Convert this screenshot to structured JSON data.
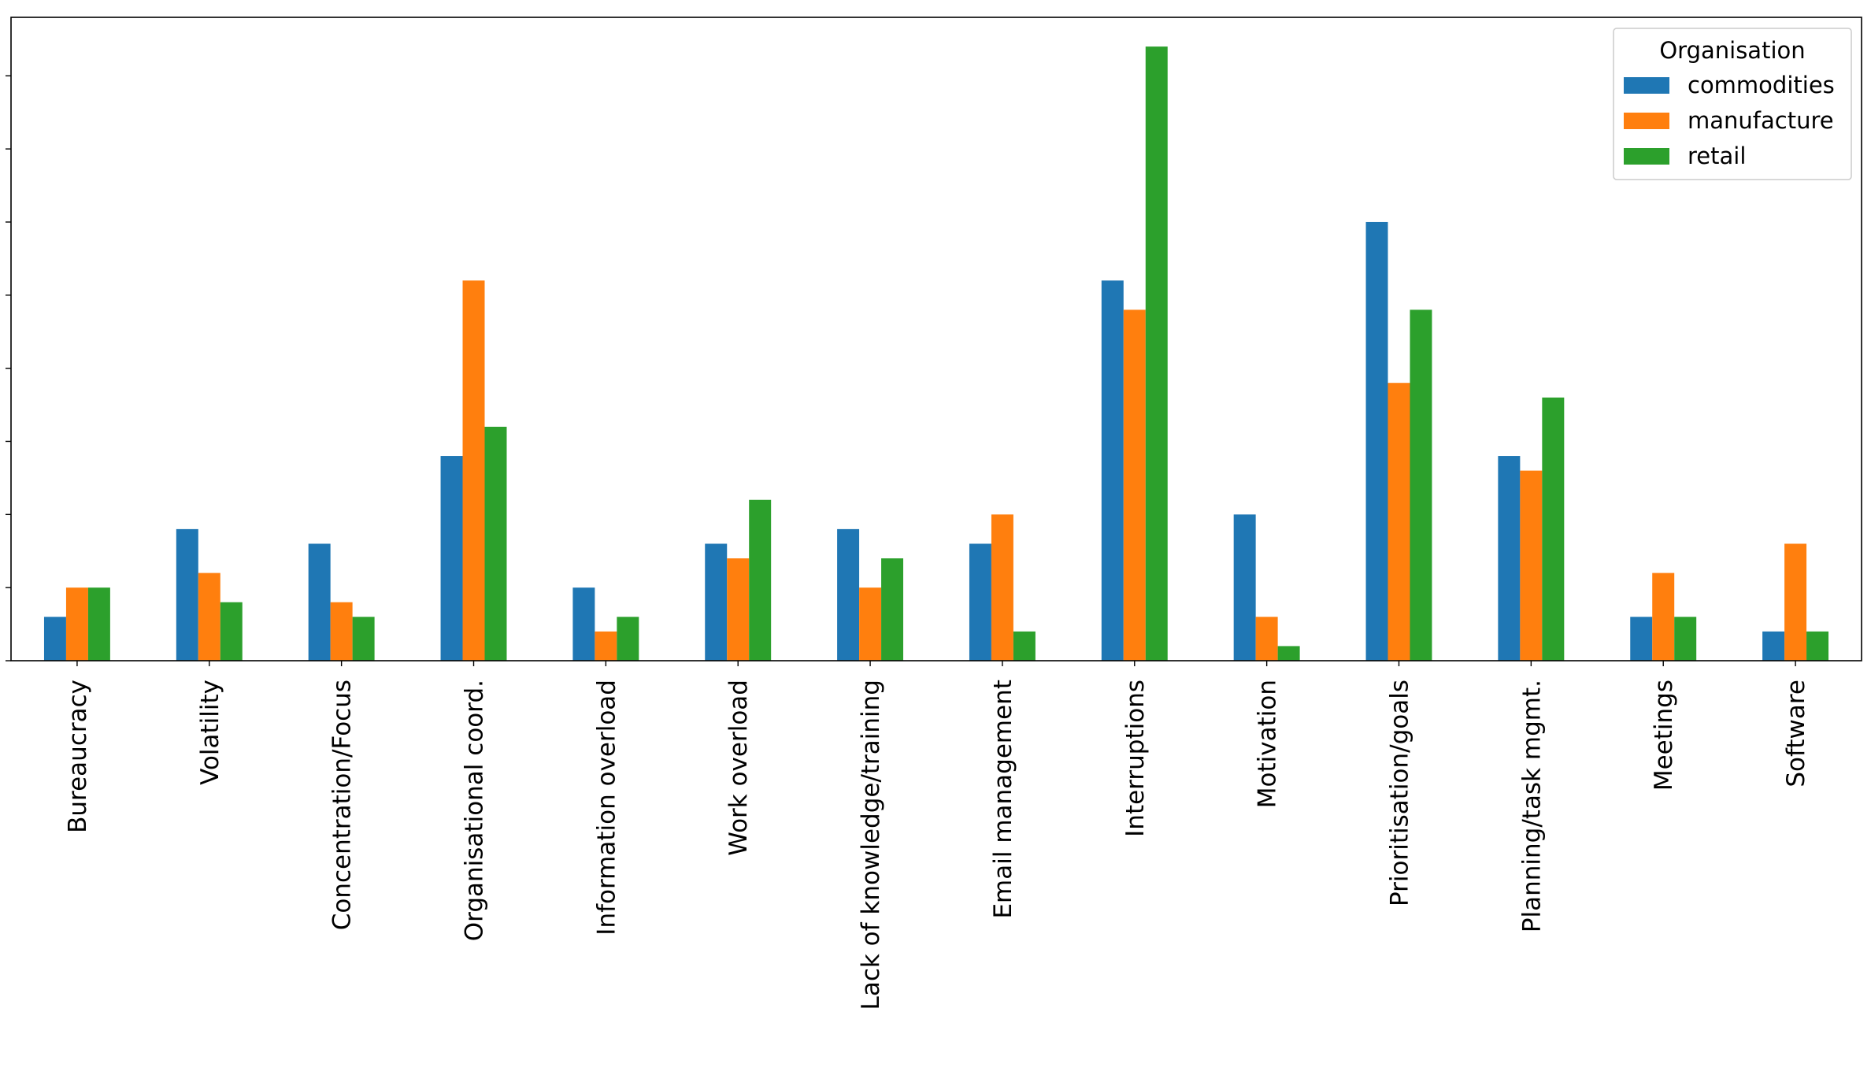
{
  "chart_data": {
    "type": "bar",
    "title": "",
    "xlabel": "",
    "ylabel": "",
    "categories": [
      "Bureaucracy",
      "Volatility",
      "Concentration/Focus",
      "Organisational coord.",
      "Information overload",
      "Work overload",
      "Lack of knowledge/training",
      "Email management",
      "Interruptions",
      "Motivation",
      "Prioritisation/goals",
      "Planning/task mgmt.",
      "Meetings",
      "Software"
    ],
    "series": [
      {
        "name": "commodities",
        "color": "#1f77b4",
        "values": [
          3,
          9,
          8,
          14,
          5,
          8,
          9,
          8,
          26,
          10,
          30,
          14,
          3,
          2
        ]
      },
      {
        "name": "manufacture",
        "color": "#ff7f0e",
        "values": [
          5,
          6,
          4,
          26,
          2,
          7,
          5,
          10,
          24,
          3,
          19,
          13,
          6,
          8
        ]
      },
      {
        "name": "retail",
        "color": "#2ca02c",
        "values": [
          5,
          4,
          3,
          16,
          3,
          11,
          7,
          2,
          42,
          1,
          24,
          18,
          3,
          2
        ]
      }
    ],
    "ylim": [
      0,
      44
    ],
    "yticks": [
      0,
      5,
      10,
      15,
      20,
      25,
      30,
      35,
      40
    ],
    "ytick_labels_visible": false,
    "grid": false,
    "legend": {
      "title": "Organisation",
      "position": "top-right"
    }
  }
}
